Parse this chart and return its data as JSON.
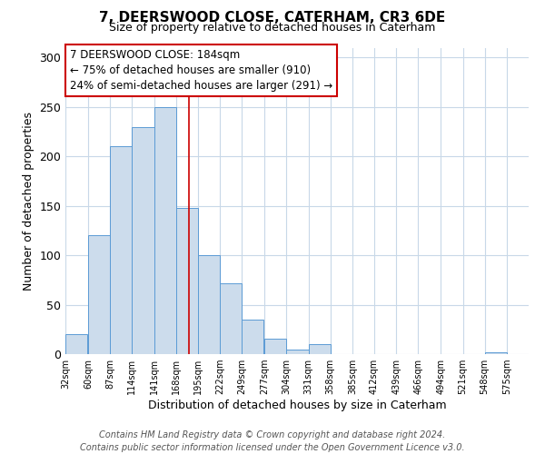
{
  "title": "7, DEERSWOOD CLOSE, CATERHAM, CR3 6DE",
  "subtitle": "Size of property relative to detached houses in Caterham",
  "xlabel": "Distribution of detached houses by size in Caterham",
  "ylabel": "Number of detached properties",
  "bar_left_edges": [
    32,
    60,
    87,
    114,
    141,
    168,
    195,
    222,
    249,
    277,
    304,
    331,
    358,
    385,
    412,
    439,
    466,
    494,
    521,
    548
  ],
  "bar_heights": [
    20,
    120,
    210,
    230,
    250,
    148,
    100,
    72,
    35,
    16,
    5,
    10,
    0,
    0,
    0,
    0,
    0,
    0,
    0,
    2
  ],
  "bin_width": 27,
  "bar_facecolor": "#ccdcec",
  "bar_edgecolor": "#5b9bd5",
  "vline_x": 184,
  "vline_color": "#cc0000",
  "ylim": [
    0,
    310
  ],
  "yticks": [
    0,
    50,
    100,
    150,
    200,
    250,
    300
  ],
  "xtick_labels": [
    "32sqm",
    "60sqm",
    "87sqm",
    "114sqm",
    "141sqm",
    "168sqm",
    "195sqm",
    "222sqm",
    "249sqm",
    "277sqm",
    "304sqm",
    "331sqm",
    "358sqm",
    "385sqm",
    "412sqm",
    "439sqm",
    "466sqm",
    "494sqm",
    "521sqm",
    "548sqm",
    "575sqm"
  ],
  "xtick_positions": [
    32,
    60,
    87,
    114,
    141,
    168,
    195,
    222,
    249,
    277,
    304,
    331,
    358,
    385,
    412,
    439,
    466,
    494,
    521,
    548,
    575
  ],
  "annotation_line1": "7 DEERSWOOD CLOSE: 184sqm",
  "annotation_line2": "← 75% of detached houses are smaller (910)",
  "annotation_line3": "24% of semi-detached houses are larger (291) →",
  "footer_text": "Contains HM Land Registry data © Crown copyright and database right 2024.\nContains public sector information licensed under the Open Government Licence v3.0.",
  "background_color": "#ffffff",
  "grid_color": "#c8d8e8",
  "title_fontsize": 11,
  "subtitle_fontsize": 9,
  "axis_label_fontsize": 9,
  "ytick_fontsize": 9,
  "xtick_fontsize": 7,
  "annot_fontsize": 8.5,
  "footer_fontsize": 7
}
